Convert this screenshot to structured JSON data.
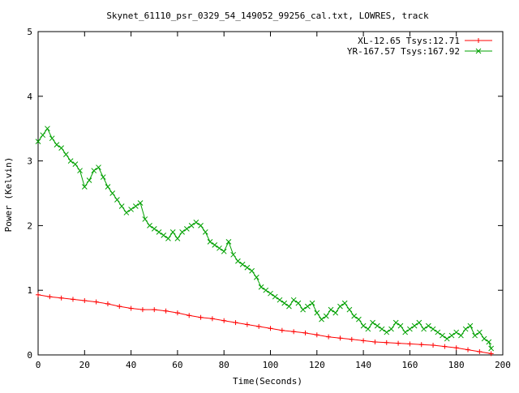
{
  "chart_data": {
    "type": "line",
    "title": "Skynet_61110_psr_0329_54_149052_99256_cal.txt, LOWRES, track",
    "xlabel": "Time(Seconds)",
    "ylabel": "Power (Kelvin)",
    "xlim": [
      0,
      200
    ],
    "ylim": [
      0,
      5
    ],
    "x_ticks": [
      0,
      20,
      40,
      60,
      80,
      100,
      120,
      140,
      160,
      180,
      200
    ],
    "y_ticks": [
      0,
      1,
      2,
      3,
      4,
      5
    ],
    "grid": false,
    "legend_position": "top-right",
    "series": [
      {
        "name": "XL-12.65 Tsys:12.71",
        "color": "#ff0000",
        "marker": "plus",
        "points": [
          [
            0,
            0.93
          ],
          [
            5,
            0.9
          ],
          [
            10,
            0.88
          ],
          [
            15,
            0.86
          ],
          [
            20,
            0.84
          ],
          [
            25,
            0.82
          ],
          [
            30,
            0.79
          ],
          [
            35,
            0.75
          ],
          [
            40,
            0.72
          ],
          [
            45,
            0.7
          ],
          [
            50,
            0.7
          ],
          [
            55,
            0.68
          ],
          [
            60,
            0.65
          ],
          [
            65,
            0.61
          ],
          [
            70,
            0.58
          ],
          [
            75,
            0.56
          ],
          [
            80,
            0.53
          ],
          [
            85,
            0.5
          ],
          [
            90,
            0.47
          ],
          [
            95,
            0.44
          ],
          [
            100,
            0.41
          ],
          [
            105,
            0.38
          ],
          [
            110,
            0.36
          ],
          [
            115,
            0.34
          ],
          [
            120,
            0.31
          ],
          [
            125,
            0.28
          ],
          [
            130,
            0.26
          ],
          [
            135,
            0.24
          ],
          [
            140,
            0.22
          ],
          [
            145,
            0.2
          ],
          [
            150,
            0.19
          ],
          [
            155,
            0.18
          ],
          [
            160,
            0.17
          ],
          [
            165,
            0.16
          ],
          [
            170,
            0.15
          ],
          [
            175,
            0.13
          ],
          [
            180,
            0.11
          ],
          [
            185,
            0.08
          ],
          [
            190,
            0.05
          ],
          [
            195,
            0.02
          ]
        ]
      },
      {
        "name": "YR-167.57 Tsys:167.92",
        "color": "#00a000",
        "marker": "cross",
        "points": [
          [
            0,
            3.3
          ],
          [
            2,
            3.4
          ],
          [
            4,
            3.5
          ],
          [
            6,
            3.35
          ],
          [
            8,
            3.25
          ],
          [
            10,
            3.2
          ],
          [
            12,
            3.1
          ],
          [
            14,
            3.0
          ],
          [
            16,
            2.95
          ],
          [
            18,
            2.85
          ],
          [
            20,
            2.6
          ],
          [
            22,
            2.7
          ],
          [
            24,
            2.85
          ],
          [
            26,
            2.9
          ],
          [
            28,
            2.75
          ],
          [
            30,
            2.6
          ],
          [
            32,
            2.5
          ],
          [
            34,
            2.4
          ],
          [
            36,
            2.3
          ],
          [
            38,
            2.2
          ],
          [
            40,
            2.25
          ],
          [
            42,
            2.3
          ],
          [
            44,
            2.35
          ],
          [
            46,
            2.1
          ],
          [
            48,
            2.0
          ],
          [
            50,
            1.95
          ],
          [
            52,
            1.9
          ],
          [
            54,
            1.85
          ],
          [
            56,
            1.8
          ],
          [
            58,
            1.9
          ],
          [
            60,
            1.8
          ],
          [
            62,
            1.9
          ],
          [
            64,
            1.95
          ],
          [
            66,
            2.0
          ],
          [
            68,
            2.05
          ],
          [
            70,
            2.0
          ],
          [
            72,
            1.9
          ],
          [
            74,
            1.75
          ],
          [
            76,
            1.7
          ],
          [
            78,
            1.65
          ],
          [
            80,
            1.6
          ],
          [
            82,
            1.75
          ],
          [
            84,
            1.55
          ],
          [
            86,
            1.45
          ],
          [
            88,
            1.4
          ],
          [
            90,
            1.35
          ],
          [
            92,
            1.3
          ],
          [
            94,
            1.2
          ],
          [
            96,
            1.05
          ],
          [
            98,
            1.0
          ],
          [
            100,
            0.95
          ],
          [
            102,
            0.9
          ],
          [
            104,
            0.85
          ],
          [
            106,
            0.8
          ],
          [
            108,
            0.75
          ],
          [
            110,
            0.85
          ],
          [
            112,
            0.8
          ],
          [
            114,
            0.7
          ],
          [
            116,
            0.75
          ],
          [
            118,
            0.8
          ],
          [
            120,
            0.65
          ],
          [
            122,
            0.55
          ],
          [
            124,
            0.6
          ],
          [
            126,
            0.7
          ],
          [
            128,
            0.65
          ],
          [
            130,
            0.75
          ],
          [
            132,
            0.8
          ],
          [
            134,
            0.7
          ],
          [
            136,
            0.6
          ],
          [
            138,
            0.55
          ],
          [
            140,
            0.45
          ],
          [
            142,
            0.4
          ],
          [
            144,
            0.5
          ],
          [
            146,
            0.45
          ],
          [
            148,
            0.4
          ],
          [
            150,
            0.35
          ],
          [
            152,
            0.4
          ],
          [
            154,
            0.5
          ],
          [
            156,
            0.45
          ],
          [
            158,
            0.35
          ],
          [
            160,
            0.4
          ],
          [
            162,
            0.45
          ],
          [
            164,
            0.5
          ],
          [
            166,
            0.4
          ],
          [
            168,
            0.45
          ],
          [
            170,
            0.4
          ],
          [
            172,
            0.35
          ],
          [
            174,
            0.3
          ],
          [
            176,
            0.25
          ],
          [
            178,
            0.3
          ],
          [
            180,
            0.35
          ],
          [
            182,
            0.3
          ],
          [
            184,
            0.4
          ],
          [
            186,
            0.45
          ],
          [
            188,
            0.3
          ],
          [
            190,
            0.35
          ],
          [
            192,
            0.25
          ],
          [
            194,
            0.2
          ],
          [
            195,
            0.1
          ]
        ]
      }
    ]
  }
}
